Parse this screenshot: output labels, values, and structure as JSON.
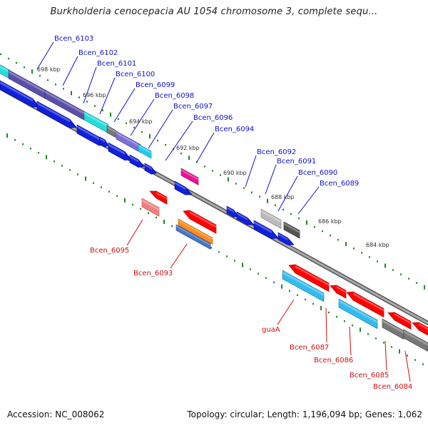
{
  "title": "Burkholderia cenocepacia AU 1054 chromosome 3, complete sequ...",
  "footer": {
    "accession": "Accession: NC_008062",
    "summary": "Topology: circular; Length: 1,196,094 bp; Genes: 1,062"
  },
  "colors": {
    "forward_label": "#1010cc",
    "reverse_label": "#cc1111",
    "backbone": "#888888",
    "tick": "#228822"
  },
  "kbp_ticks": [
    "698 kbp",
    "696 kbp",
    "694 kbp",
    "692 kbp",
    "690 kbp",
    "688 kbp",
    "686 kbp",
    "684 kbp"
  ],
  "forward_genes": [
    "Bcen_6103",
    "Bcen_6102",
    "Bcen_6101",
    "Bcen_6100",
    "Bcen_6099",
    "Bcen_6098",
    "Bcen_6097",
    "Bcen_6096",
    "Bcen_6094",
    "Bcen_6092",
    "Bcen_6091",
    "Bcen_6090",
    "Bcen_6089"
  ],
  "reverse_genes": [
    "Bcen_6095",
    "Bcen_6093",
    "guaA",
    "Bcen_6087",
    "Bcen_6086",
    "Bcen_6085",
    "Bcen_6084"
  ]
}
